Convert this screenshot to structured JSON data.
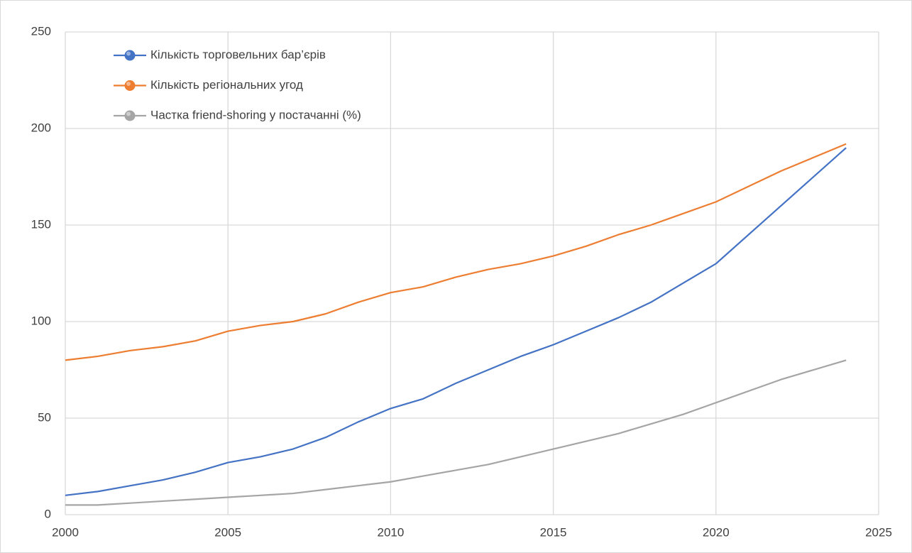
{
  "chart_data": {
    "type": "line",
    "x": [
      2000,
      2001,
      2002,
      2003,
      2004,
      2005,
      2006,
      2007,
      2008,
      2009,
      2010,
      2011,
      2012,
      2013,
      2014,
      2015,
      2016,
      2017,
      2018,
      2019,
      2020,
      2022,
      2024
    ],
    "series": [
      {
        "name": "Кількість торговельних бар’єрів",
        "color": "#4472c4",
        "values": [
          10,
          12,
          15,
          18,
          22,
          27,
          30,
          34,
          40,
          48,
          55,
          60,
          68,
          75,
          82,
          88,
          95,
          102,
          110,
          120,
          130,
          160,
          190
        ]
      },
      {
        "name": "Кількість регіональних угод",
        "color": "#ed7d31",
        "values": [
          80,
          82,
          85,
          87,
          90,
          95,
          98,
          100,
          104,
          110,
          115,
          118,
          123,
          127,
          130,
          134,
          139,
          145,
          150,
          156,
          162,
          178,
          192
        ]
      },
      {
        "name": "Частка friend-shoring у постачанні (%)",
        "color": "#a5a5a5",
        "values": [
          5,
          5,
          6,
          7,
          8,
          9,
          10,
          11,
          13,
          15,
          17,
          20,
          23,
          26,
          30,
          34,
          38,
          42,
          47,
          52,
          58,
          70,
          80
        ]
      }
    ],
    "xlim": [
      2000,
      2025
    ],
    "xticks": [
      2000,
      2005,
      2010,
      2015,
      2020,
      2025
    ],
    "ylim": [
      0,
      250
    ],
    "yticks": [
      0,
      50,
      100,
      150,
      200,
      250
    ],
    "grid": true,
    "legend": "top-left"
  }
}
